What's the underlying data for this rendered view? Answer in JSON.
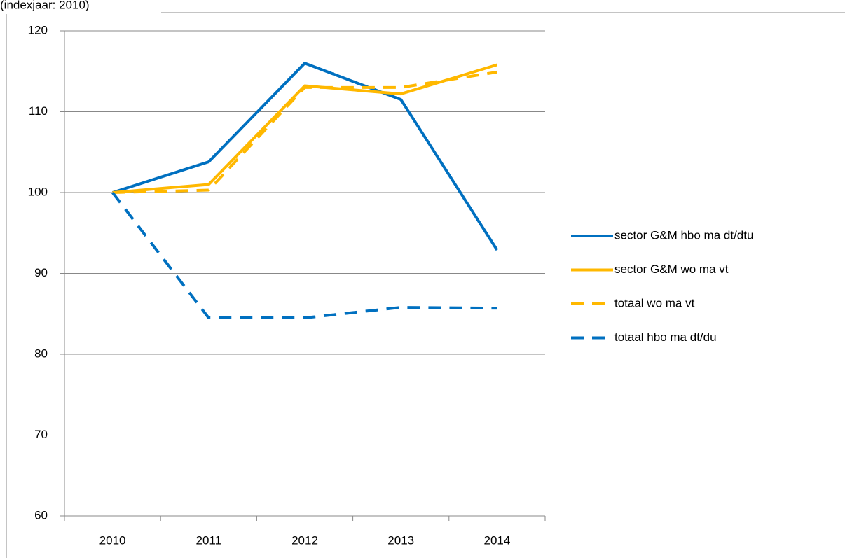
{
  "chart_data": {
    "type": "line",
    "title": "(indexjaar: 2010)",
    "categories": [
      "2010",
      "2011",
      "2012",
      "2013",
      "2014"
    ],
    "series": [
      {
        "name": "sector G&M hbo ma dt/dtu",
        "color": "#0070c0",
        "dash": false,
        "values": [
          100,
          103.8,
          116,
          111.5,
          92.9
        ]
      },
      {
        "name": "sector G&M wo ma vt",
        "color": "#ffb800",
        "dash": false,
        "values": [
          100,
          101,
          113.2,
          112.2,
          115.8
        ]
      },
      {
        "name": "totaal wo ma vt",
        "color": "#ffb800",
        "dash": true,
        "values": [
          100,
          100.3,
          113,
          113,
          114.9
        ]
      },
      {
        "name": "totaal hbo ma dt/du",
        "color": "#0070c0",
        "dash": true,
        "values": [
          100,
          84.5,
          84.5,
          85.8,
          85.7
        ]
      }
    ],
    "ylim": [
      60,
      120
    ],
    "yticks": [
      60,
      70,
      80,
      90,
      100,
      110,
      120
    ],
    "grid": true,
    "legend": "right"
  }
}
